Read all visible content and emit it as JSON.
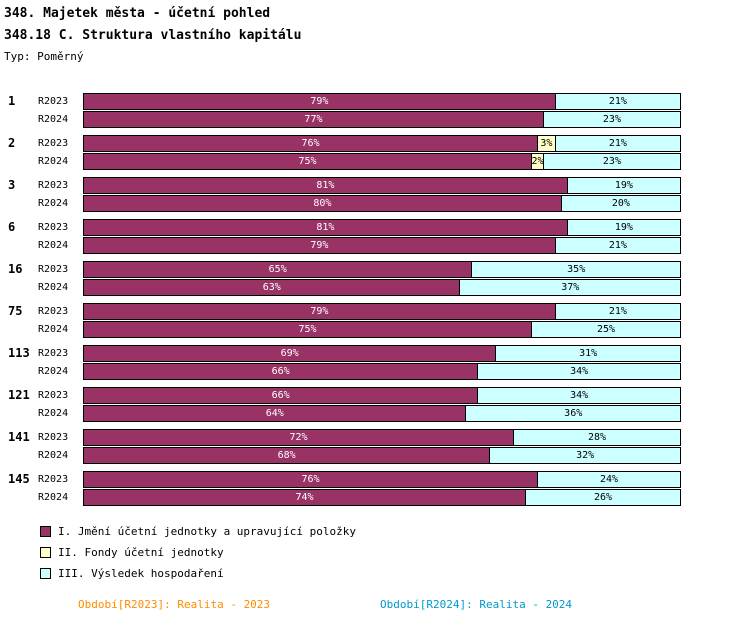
{
  "header": {
    "title_line1": "348. Majetek města - účetní pohled",
    "title_line2": "348.18 C. Struktura vlastního kapitálu",
    "type_label": "Typ: Poměrný"
  },
  "colors": {
    "series": [
      "#993366",
      "#FFFFCC",
      "#CCFFFF"
    ],
    "series_text": [
      "#FFFFFF",
      "#000000",
      "#000000"
    ],
    "bar_border": "#000000",
    "footer_left": "#FF8C00",
    "footer_right": "#0099CC"
  },
  "chart_data": {
    "type": "bar",
    "orientation": "horizontal-stacked",
    "value_suffix": "%",
    "xlim": [
      0,
      100
    ],
    "grid": false,
    "legend_position": "bottom-left",
    "series_names": [
      "I. Jmění účetní jednotky a upravující položky",
      "II. Fondy účetní jednotky",
      "III. Výsledek hospodaření"
    ],
    "groups": [
      {
        "id": "1",
        "rows": [
          {
            "label": "R2023",
            "values": [
              79,
              0,
              21
            ]
          },
          {
            "label": "R2024",
            "values": [
              77,
              0,
              23
            ]
          }
        ]
      },
      {
        "id": "2",
        "rows": [
          {
            "label": "R2023",
            "values": [
              76,
              3,
              21
            ]
          },
          {
            "label": "R2024",
            "values": [
              75,
              2,
              23
            ]
          }
        ]
      },
      {
        "id": "3",
        "rows": [
          {
            "label": "R2023",
            "values": [
              81,
              0,
              19
            ]
          },
          {
            "label": "R2024",
            "values": [
              80,
              0,
              20
            ]
          }
        ]
      },
      {
        "id": "6",
        "rows": [
          {
            "label": "R2023",
            "values": [
              81,
              0,
              19
            ]
          },
          {
            "label": "R2024",
            "values": [
              79,
              0,
              21
            ]
          }
        ]
      },
      {
        "id": "16",
        "rows": [
          {
            "label": "R2023",
            "values": [
              65,
              0,
              35
            ]
          },
          {
            "label": "R2024",
            "values": [
              63,
              0,
              37
            ]
          }
        ]
      },
      {
        "id": "75",
        "rows": [
          {
            "label": "R2023",
            "values": [
              79,
              0,
              21
            ]
          },
          {
            "label": "R2024",
            "values": [
              75,
              0,
              25
            ]
          }
        ]
      },
      {
        "id": "113",
        "rows": [
          {
            "label": "R2023",
            "values": [
              69,
              0,
              31
            ]
          },
          {
            "label": "R2024",
            "values": [
              66,
              0,
              34
            ]
          }
        ]
      },
      {
        "id": "121",
        "rows": [
          {
            "label": "R2023",
            "values": [
              66,
              0,
              34
            ]
          },
          {
            "label": "R2024",
            "values": [
              64,
              0,
              36
            ]
          }
        ]
      },
      {
        "id": "141",
        "rows": [
          {
            "label": "R2023",
            "values": [
              72,
              0,
              28
            ]
          },
          {
            "label": "R2024",
            "values": [
              68,
              0,
              32
            ]
          }
        ]
      },
      {
        "id": "145",
        "rows": [
          {
            "label": "R2023",
            "values": [
              76,
              0,
              24
            ]
          },
          {
            "label": "R2024",
            "values": [
              74,
              0,
              26
            ]
          }
        ]
      }
    ]
  },
  "legend": {
    "items": [
      {
        "label": "I. Jmění účetní jednotky a upravující položky",
        "color": "#993366"
      },
      {
        "label": "II. Fondy účetní jednotky",
        "color": "#FFFFCC"
      },
      {
        "label": "III. Výsledek hospodaření",
        "color": "#CCFFFF"
      }
    ]
  },
  "footer": {
    "left": "Období[R2023]: Realita - 2023",
    "right": "Období[R2024]: Realita - 2024"
  }
}
